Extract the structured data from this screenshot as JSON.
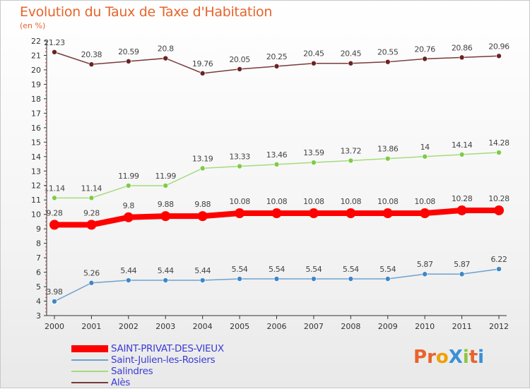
{
  "chart_data": {
    "type": "line",
    "title": "Evolution du Taux de Taxe d'Habitation",
    "unit_label": "(en %)",
    "x": [
      "2000",
      "2001",
      "2002",
      "2003",
      "2004",
      "2005",
      "2006",
      "2007",
      "2008",
      "2009",
      "2010",
      "2011",
      "2012"
    ],
    "ylim": [
      3,
      22
    ],
    "yticks": [
      3,
      4,
      5,
      6,
      7,
      8,
      9,
      10,
      11,
      12,
      13,
      14,
      15,
      16,
      17,
      18,
      19,
      20,
      21,
      22
    ],
    "series": [
      {
        "name": "SAINT-PRIVAT-DES-VIEUX",
        "color": "#ff0000",
        "highlight": true,
        "values": [
          9.28,
          9.28,
          9.8,
          9.88,
          9.88,
          10.08,
          10.08,
          10.08,
          10.08,
          10.08,
          10.08,
          10.28,
          10.28
        ],
        "labels": [
          "9.28",
          "9.28",
          "9.8",
          "9.88",
          "9.88",
          "10.08",
          "10.08",
          "10.08",
          "10.08",
          "10.08",
          "10.08",
          "10.28",
          "10.28"
        ]
      },
      {
        "name": "Saint-Julien-les-Rosiers",
        "color": "#6fa1cf",
        "point_color": "#3f86c6",
        "values": [
          3.98,
          5.26,
          5.44,
          5.44,
          5.44,
          5.54,
          5.54,
          5.54,
          5.54,
          5.54,
          5.87,
          5.87,
          6.22
        ],
        "labels": [
          "3.98",
          "5.26",
          "5.44",
          "5.44",
          "5.44",
          "5.54",
          "5.54",
          "5.54",
          "5.54",
          "5.54",
          "5.87",
          "5.87",
          "6.22"
        ]
      },
      {
        "name": "Salindres",
        "color": "#a6db7c",
        "point_color": "#7dcc48",
        "values": [
          11.14,
          11.14,
          11.99,
          11.99,
          13.19,
          13.33,
          13.46,
          13.59,
          13.72,
          13.86,
          14,
          14.14,
          14.28
        ],
        "labels": [
          "11.14",
          "11.14",
          "11.99",
          "11.99",
          "13.19",
          "13.33",
          "13.46",
          "13.59",
          "13.72",
          "13.86",
          "14",
          "14.14",
          "14.28"
        ]
      },
      {
        "name": "Alès",
        "color": "#7a3a3a",
        "point_color": "#6b2323",
        "values": [
          21.23,
          20.38,
          20.59,
          20.8,
          19.76,
          20.05,
          20.25,
          20.45,
          20.45,
          20.55,
          20.76,
          20.86,
          20.96
        ],
        "labels": [
          "21.23",
          "20.38",
          "20.59",
          "20.8",
          "19.76",
          "20.05",
          "20.25",
          "20.45",
          "20.45",
          "20.55",
          "20.76",
          "20.86",
          "20.96"
        ]
      }
    ],
    "grid": false,
    "legend_position": "bottom-left"
  },
  "brand": {
    "text": "ProXiti",
    "colors": [
      "#e8632b",
      "#e8632b",
      "#f0a000",
      "#3a8fd6",
      "#8cc63f",
      "#e8632b",
      "#3a8fd6"
    ]
  }
}
